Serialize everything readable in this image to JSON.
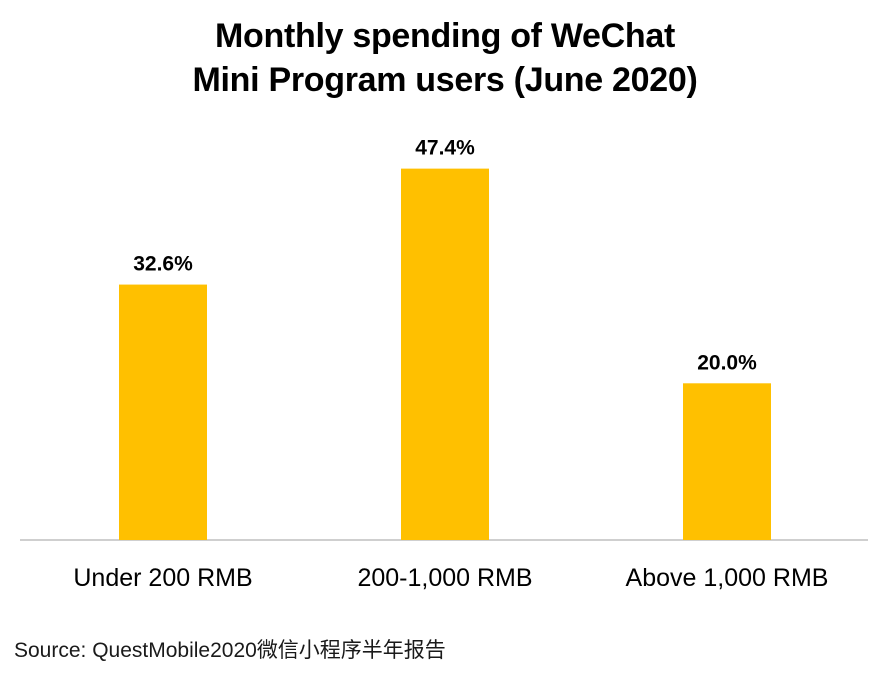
{
  "chart_data": {
    "type": "bar",
    "title_lines": [
      "Monthly spending of WeChat",
      "Mini Program users (June 2020)"
    ],
    "categories": [
      "Under 200 RMB",
      "200-1,000 RMB",
      "Above 1,000 RMB"
    ],
    "values": [
      32.6,
      47.4,
      20.0
    ],
    "data_labels": [
      "32.6%",
      "47.4%",
      "20.0%"
    ],
    "value_unit": "%",
    "ylim": [
      0,
      60
    ],
    "grid": false,
    "legend": "none",
    "bar_color": "#FFC000",
    "axis_color": "#BFBFBF"
  },
  "source": "Source: QuestMobile2020微信小程序半年报告"
}
